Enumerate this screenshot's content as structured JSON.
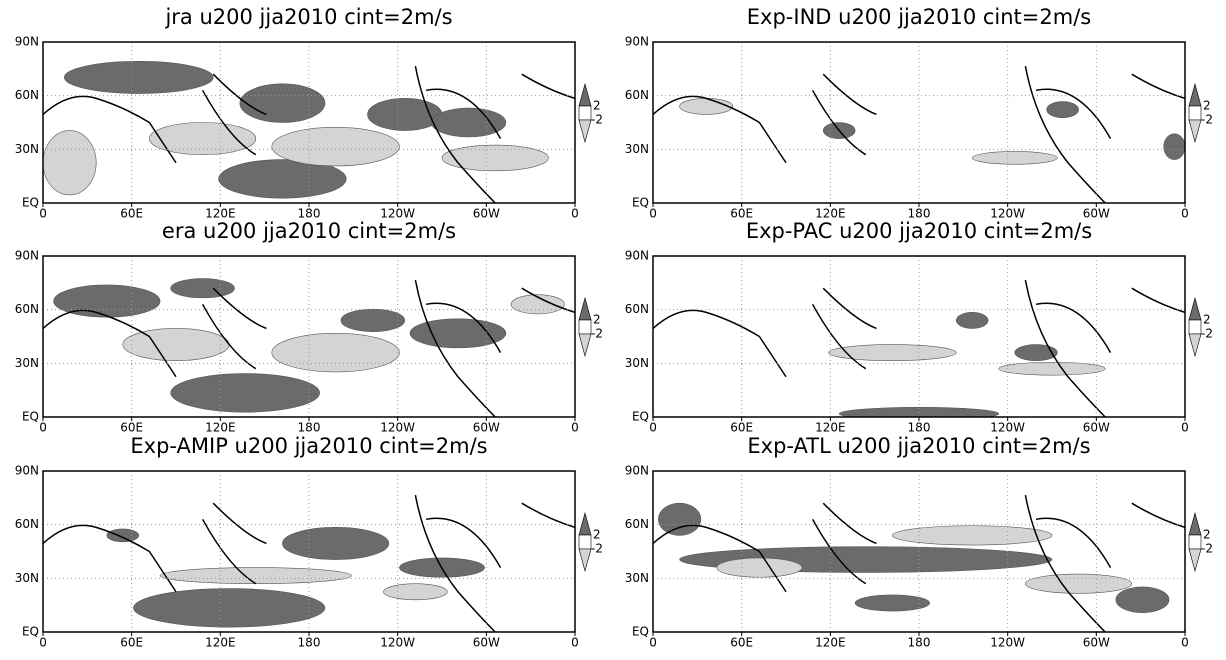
{
  "panels": [
    {
      "title": "jra u200 jja2010 cint=2m/s",
      "x_labels": [
        "0",
        "60E",
        "120E",
        "180",
        "120W",
        "60W",
        "0"
      ],
      "y_labels": [
        "90N",
        "60N",
        "30N",
        "EQ"
      ],
      "colorbar": [
        "2",
        "-2"
      ]
    },
    {
      "title": "Exp-IND u200 jja2010 cint=2m/s",
      "x_labels": [
        "0",
        "60E",
        "120E",
        "180",
        "120W",
        "60W",
        "0"
      ],
      "y_labels": [
        "90N",
        "60N",
        "30N",
        "EQ"
      ],
      "colorbar": [
        "2",
        "-2"
      ]
    },
    {
      "title": "era u200 jja2010 cint=2m/s",
      "x_labels": [
        "0",
        "60E",
        "120E",
        "180",
        "120W",
        "60W",
        "0"
      ],
      "y_labels": [
        "90N",
        "60N",
        "30N",
        "EQ"
      ],
      "colorbar": [
        "2",
        "-2"
      ]
    },
    {
      "title": "Exp-PAC u200 jja2010 cint=2m/s",
      "x_labels": [
        "0",
        "60E",
        "120E",
        "180",
        "120W",
        "60W",
        "0"
      ],
      "y_labels": [
        "90N",
        "60N",
        "30N",
        "EQ"
      ],
      "colorbar": [
        "2",
        "-2"
      ]
    },
    {
      "title": "Exp-AMIP u200 jja2010 cint=2m/s",
      "x_labels": [
        "0",
        "60E",
        "120E",
        "180",
        "120W",
        "60W",
        "0"
      ],
      "y_labels": [
        "90N",
        "60N",
        "30N",
        "EQ"
      ],
      "colorbar": [
        "2",
        "-2"
      ]
    },
    {
      "title": "Exp-ATL u200 jja2010 cint=2m/s",
      "x_labels": [
        "0",
        "60E",
        "120E",
        "180",
        "120W",
        "60W",
        "0"
      ],
      "y_labels": [
        "90N",
        "60N",
        "30N",
        "EQ"
      ],
      "colorbar": [
        "2",
        "-2"
      ]
    }
  ]
}
